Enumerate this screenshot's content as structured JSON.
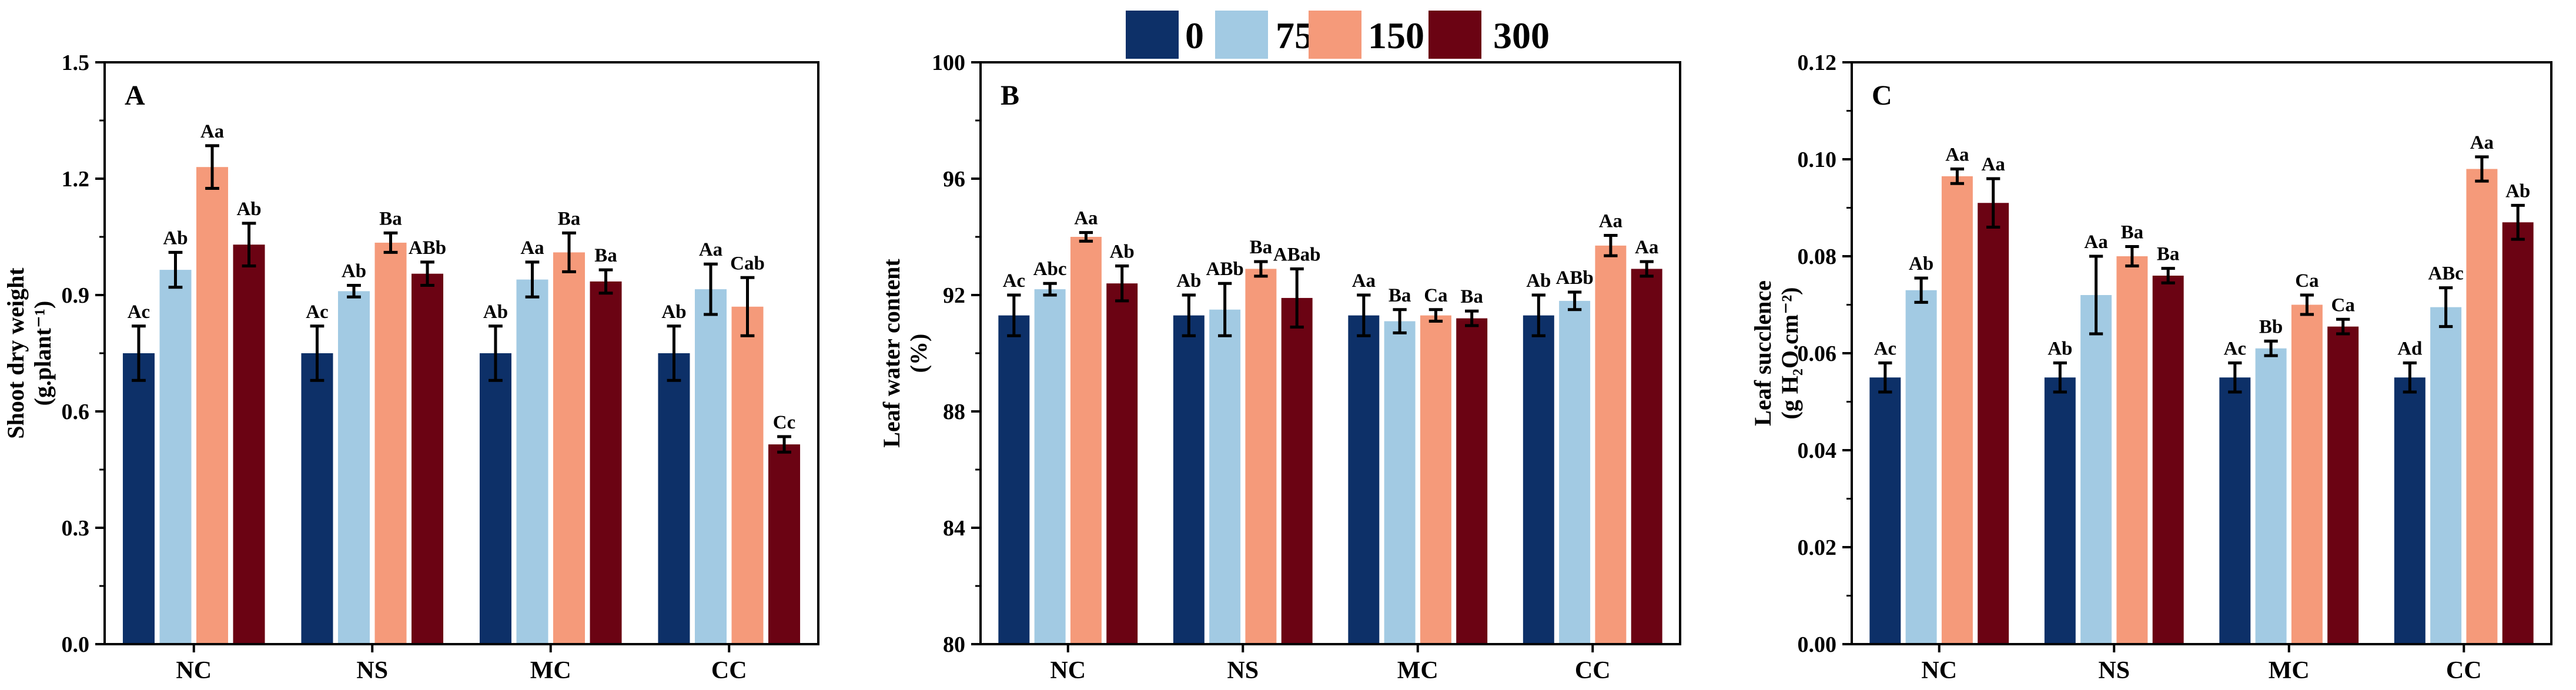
{
  "legend": {
    "entries": [
      {
        "label": "0",
        "color": "#0d3068"
      },
      {
        "label": "75",
        "color": "#a2cae3"
      },
      {
        "label": "150",
        "color": "#f59a7a"
      },
      {
        "label": "300",
        "color": "#6b0313"
      }
    ]
  },
  "chart_data": [
    {
      "type": "bar",
      "panel": "A",
      "ylabel": "Shoot dry weight",
      "ylabel_unit": "(g.plant⁻¹)",
      "ylim": [
        0,
        1.5
      ],
      "yticks": [
        0.0,
        0.3,
        0.6,
        0.9,
        1.2,
        1.5
      ],
      "ytick_labels": [
        "0.0",
        "0.3",
        "0.6",
        "0.9",
        "1.2",
        "1.5"
      ],
      "categories": [
        "NC",
        "NS",
        "MC",
        "CC"
      ],
      "series": [
        {
          "name": "0",
          "values": [
            0.75,
            0.75,
            0.75,
            0.75
          ],
          "errors": [
            0.07,
            0.07,
            0.07,
            0.07
          ],
          "labels": [
            "Ac",
            "Ac",
            "Ab",
            "Ab"
          ]
        },
        {
          "name": "75",
          "values": [
            0.965,
            0.91,
            0.94,
            0.915
          ],
          "errors": [
            0.045,
            0.015,
            0.045,
            0.065
          ],
          "labels": [
            "Ab",
            "Ab",
            "Aa",
            "Aa"
          ]
        },
        {
          "name": "150",
          "values": [
            1.23,
            1.035,
            1.01,
            0.87
          ],
          "errors": [
            0.055,
            0.025,
            0.05,
            0.075
          ],
          "labels": [
            "Aa",
            "Ba",
            "Ba",
            "Cab"
          ]
        },
        {
          "name": "300",
          "values": [
            1.03,
            0.955,
            0.935,
            0.515
          ],
          "errors": [
            0.055,
            0.03,
            0.03,
            0.02
          ],
          "labels": [
            "Ab",
            "ABb",
            "Ba",
            "Cc"
          ]
        }
      ]
    },
    {
      "type": "bar",
      "panel": "B",
      "ylabel": "Leaf water content",
      "ylabel_unit": "(%)",
      "ylim": [
        80,
        100
      ],
      "yticks": [
        80,
        84,
        88,
        92,
        96,
        100
      ],
      "ytick_labels": [
        "80",
        "84",
        "88",
        "92",
        "96",
        "100"
      ],
      "categories": [
        "NC",
        "NS",
        "MC",
        "CC"
      ],
      "series": [
        {
          "name": "0",
          "values": [
            91.3,
            91.3,
            91.3,
            91.3
          ],
          "errors": [
            0.7,
            0.7,
            0.7,
            0.7
          ],
          "labels": [
            "Ac",
            "Ab",
            "Aa",
            "Ab"
          ]
        },
        {
          "name": "75",
          "values": [
            92.2,
            91.5,
            91.1,
            91.8
          ],
          "errors": [
            0.2,
            0.9,
            0.4,
            0.3
          ],
          "labels": [
            "Abc",
            "ABb",
            "Ba",
            "ABb"
          ]
        },
        {
          "name": "150",
          "values": [
            94.0,
            92.9,
            91.3,
            93.7
          ],
          "errors": [
            0.15,
            0.25,
            0.2,
            0.35
          ],
          "labels": [
            "Aa",
            "Ba",
            "Ca",
            "Aa"
          ]
        },
        {
          "name": "300",
          "values": [
            92.4,
            91.9,
            91.2,
            92.9
          ],
          "errors": [
            0.6,
            1.0,
            0.25,
            0.25
          ],
          "labels": [
            "Ab",
            "ABab",
            "Ba",
            "Aa"
          ]
        }
      ]
    },
    {
      "type": "bar",
      "panel": "C",
      "ylabel": "Leaf succlence",
      "ylabel_unit": "(g H₂O.cm⁻²)",
      "ylim": [
        0,
        0.12
      ],
      "yticks": [
        0.0,
        0.02,
        0.04,
        0.06,
        0.08,
        0.1,
        0.12
      ],
      "ytick_labels": [
        "0.00",
        "0.02",
        "0.04",
        "0.06",
        "0.08",
        "0.10",
        "0.12"
      ],
      "categories": [
        "NC",
        "NS",
        "MC",
        "CC"
      ],
      "series": [
        {
          "name": "0",
          "values": [
            0.055,
            0.055,
            0.055,
            0.055
          ],
          "errors": [
            0.003,
            0.003,
            0.003,
            0.003
          ],
          "labels": [
            "Ac",
            "Ab",
            "Ac",
            "Ad"
          ]
        },
        {
          "name": "75",
          "values": [
            0.073,
            0.072,
            0.061,
            0.0695
          ],
          "errors": [
            0.0025,
            0.008,
            0.0015,
            0.004
          ],
          "labels": [
            "Ab",
            "Aa",
            "Bb",
            "ABc"
          ]
        },
        {
          "name": "150",
          "values": [
            0.0965,
            0.08,
            0.07,
            0.098
          ],
          "errors": [
            0.0015,
            0.002,
            0.002,
            0.0025
          ],
          "labels": [
            "Aa",
            "Ba",
            "Ca",
            "Aa"
          ]
        },
        {
          "name": "300",
          "values": [
            0.091,
            0.076,
            0.0655,
            0.087
          ],
          "errors": [
            0.005,
            0.0015,
            0.0015,
            0.0035
          ],
          "labels": [
            "Aa",
            "Ba",
            "Ca",
            "Ab"
          ]
        }
      ]
    }
  ]
}
